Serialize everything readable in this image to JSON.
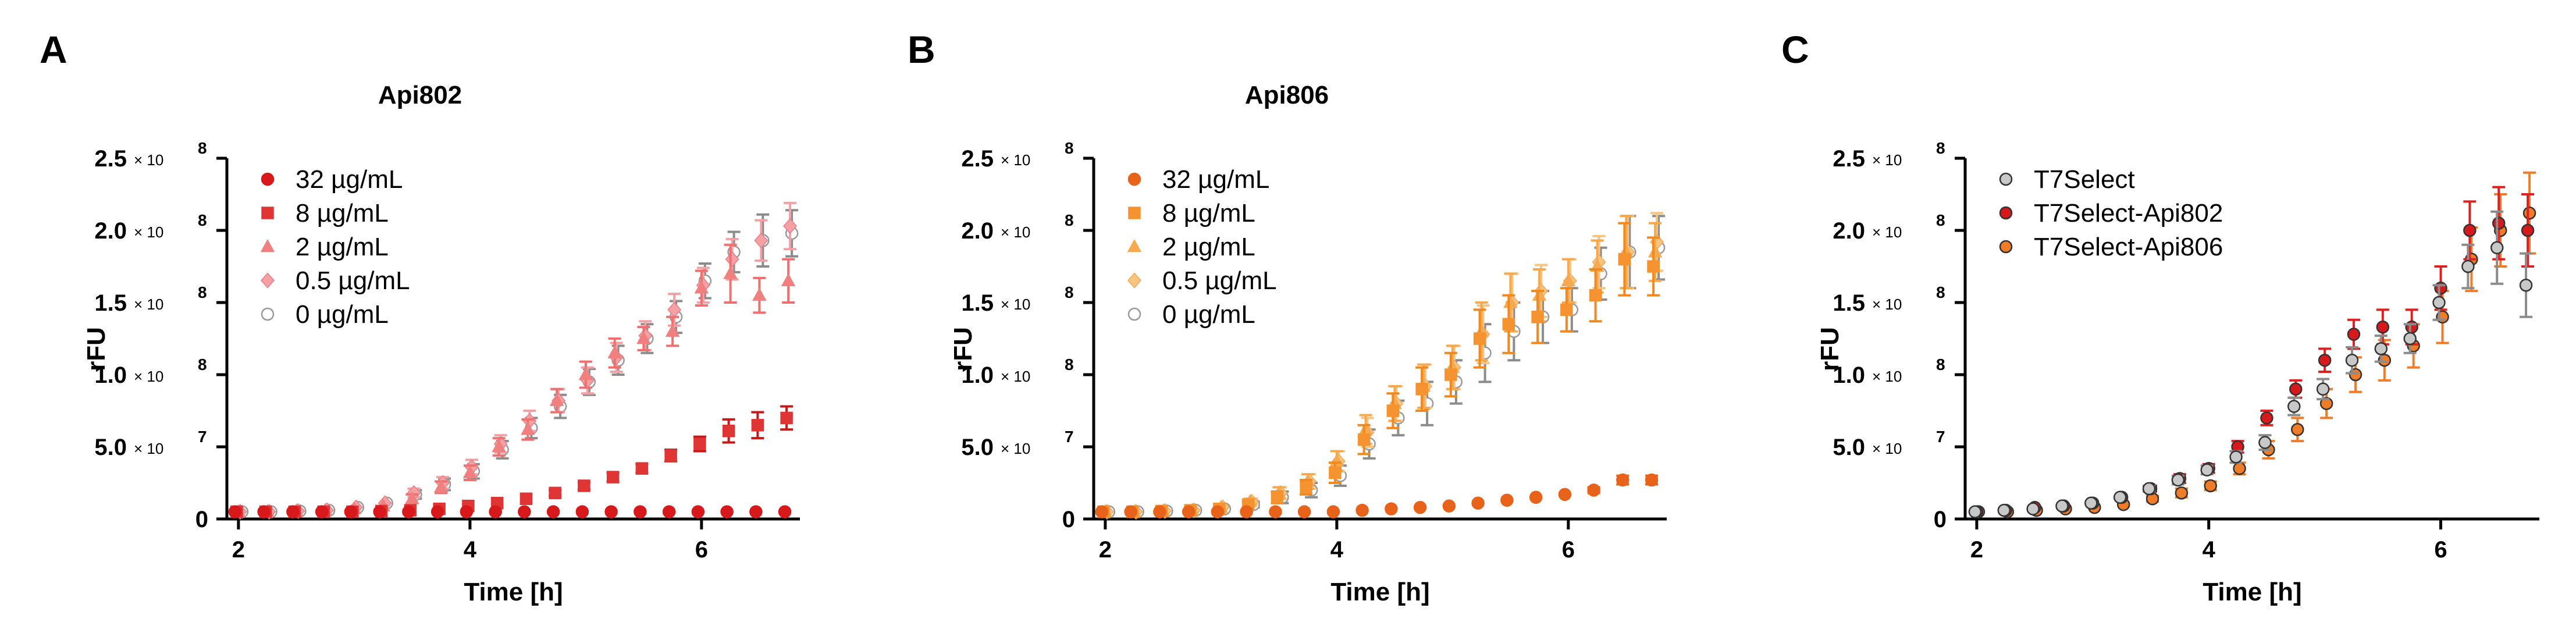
{
  "figure": {
    "panels": [
      {
        "id": "A",
        "letter": "A",
        "title": "Api802"
      },
      {
        "id": "B",
        "letter": "B",
        "title": "Api806"
      },
      {
        "id": "C",
        "letter": "C",
        "title": ""
      }
    ]
  },
  "chart_data": [
    {
      "panel": "A",
      "type": "scatter",
      "title": "Api802",
      "xlabel": "Time [h]",
      "ylabel": "rFU",
      "xlim": [
        1.9,
        6.85
      ],
      "ylim": [
        0,
        250000000
      ],
      "xticks": [
        {
          "value": 2,
          "label": "2"
        },
        {
          "value": 4,
          "label": "4"
        },
        {
          "value": 6,
          "label": "6"
        }
      ],
      "yticks": [
        {
          "value": 0,
          "mant": "0",
          "times": "",
          "exp": ""
        },
        {
          "value": 50000000,
          "mant": "5.0",
          "times": "× 10",
          "exp": "7"
        },
        {
          "value": 100000000,
          "mant": "1.0",
          "times": "× 10",
          "exp": "8"
        },
        {
          "value": 150000000,
          "mant": "1.5",
          "times": "× 10",
          "exp": "8"
        },
        {
          "value": 200000000,
          "mant": "2.0",
          "times": "× 10",
          "exp": "8"
        },
        {
          "value": 250000000,
          "mant": "2.5",
          "times": "× 10",
          "exp": "8"
        }
      ],
      "legend_position": "top-left",
      "x": [
        2.0,
        2.25,
        2.5,
        2.75,
        3.0,
        3.25,
        3.5,
        3.75,
        4.0,
        4.25,
        4.5,
        4.75,
        5.0,
        5.25,
        5.5,
        5.75,
        6.0,
        6.25,
        6.5,
        6.75
      ],
      "series": [
        {
          "name": "32 µg/mL",
          "marker": "circle",
          "fill": "#d7191c",
          "stroke": "#d7191c",
          "err_color": "#d7191c",
          "values": [
            5,
            5,
            5,
            5,
            5,
            5,
            5,
            5,
            5,
            5,
            5,
            5,
            5,
            5,
            5,
            5,
            5,
            5,
            5,
            5
          ],
          "errors": [
            0.2,
            0.2,
            0.2,
            0.2,
            0.2,
            0.2,
            0.2,
            0.2,
            0.2,
            0.2,
            0.2,
            0.2,
            0.2,
            0.2,
            0.2,
            0.2,
            0.2,
            0.2,
            0.2,
            0.2
          ]
        },
        {
          "name": "8 µg/mL",
          "marker": "square",
          "fill": "#e03535",
          "stroke": "#e03535",
          "err_color": "#c81818",
          "values": [
            5,
            5,
            5,
            5,
            5,
            5.5,
            6,
            7,
            9,
            11,
            14,
            18,
            23,
            29,
            35,
            44,
            52,
            61,
            65,
            70
          ],
          "errors": [
            0.3,
            0.3,
            0.3,
            0.3,
            0.3,
            0.4,
            0.5,
            0.6,
            0.8,
            1,
            1.5,
            2,
            2.5,
            3,
            3,
            4,
            5,
            8,
            9,
            8
          ]
        },
        {
          "name": "2 µg/mL",
          "marker": "triangle",
          "fill": "#f08080",
          "stroke": "#f08080",
          "err_color": "#f07070",
          "values": [
            5,
            5,
            5.5,
            6,
            7,
            9,
            14,
            22,
            32,
            50,
            62,
            82,
            100,
            115,
            125,
            130,
            160,
            170,
            155,
            165
          ],
          "errors": [
            0.3,
            0.3,
            0.4,
            0.5,
            1,
            1.5,
            3,
            4,
            5,
            6,
            7,
            8,
            9,
            10,
            8,
            10,
            12,
            20,
            12,
            15
          ]
        },
        {
          "name": "0.5 µg/mL",
          "marker": "diamond",
          "fill": "#f4a0a4",
          "stroke": "#e87f86",
          "err_color": "#f4a0a4",
          "values": [
            5,
            5,
            5.5,
            6,
            8,
            11,
            18,
            25,
            36,
            52,
            68,
            82,
            96,
            112,
            127,
            145,
            162,
            180,
            193,
            203
          ],
          "errors": [
            0.3,
            0.3,
            0.4,
            0.5,
            1,
            1.5,
            3,
            4,
            5,
            6,
            7,
            8,
            9,
            10,
            10,
            11,
            12,
            14,
            14,
            16
          ]
        },
        {
          "name": "0 µg/mL",
          "marker": "circle-open",
          "fill": "#ffffff",
          "stroke": "#9a9a9a",
          "err_color": "#8c8c8c",
          "values": [
            5,
            5,
            5.5,
            6,
            8,
            11,
            17,
            24,
            33,
            48,
            63,
            78,
            95,
            110,
            125,
            140,
            165,
            185,
            193,
            198
          ],
          "errors": [
            0.3,
            0.3,
            0.4,
            0.5,
            1,
            1.5,
            3,
            4,
            5,
            6,
            7,
            8,
            9,
            10,
            10,
            11,
            12,
            14,
            18,
            16
          ]
        }
      ]
    },
    {
      "panel": "B",
      "type": "scatter",
      "title": "Api806",
      "xlabel": "Time [h]",
      "ylabel": "rFU",
      "xlim": [
        1.9,
        6.85
      ],
      "ylim": [
        0,
        250000000
      ],
      "xticks": [
        {
          "value": 2,
          "label": "2"
        },
        {
          "value": 4,
          "label": "4"
        },
        {
          "value": 6,
          "label": "6"
        }
      ],
      "yticks": [
        {
          "value": 0,
          "mant": "0",
          "times": "",
          "exp": ""
        },
        {
          "value": 50000000,
          "mant": "5.0",
          "times": "× 10",
          "exp": "7"
        },
        {
          "value": 100000000,
          "mant": "1.0",
          "times": "× 10",
          "exp": "8"
        },
        {
          "value": 150000000,
          "mant": "1.5",
          "times": "× 10",
          "exp": "8"
        },
        {
          "value": 200000000,
          "mant": "2.0",
          "times": "× 10",
          "exp": "8"
        },
        {
          "value": 250000000,
          "mant": "2.5",
          "times": "× 10",
          "exp": "8"
        }
      ],
      "legend_position": "top-left",
      "x": [
        2.0,
        2.25,
        2.5,
        2.75,
        3.0,
        3.25,
        3.5,
        3.75,
        4.0,
        4.25,
        4.5,
        4.75,
        5.0,
        5.25,
        5.5,
        5.75,
        6.0,
        6.25,
        6.5,
        6.75
      ],
      "series": [
        {
          "name": "32 µg/mL",
          "marker": "circle",
          "fill": "#e8621a",
          "stroke": "#e8621a",
          "err_color": "#e8621a",
          "values": [
            5,
            5,
            5,
            5,
            5,
            5,
            5,
            5,
            5,
            6,
            7,
            8,
            9,
            11,
            13,
            15,
            17,
            20,
            27,
            27
          ],
          "errors": [
            0.2,
            0.2,
            0.2,
            0.2,
            0.2,
            0.2,
            0.2,
            0.2,
            0.3,
            0.4,
            0.5,
            0.6,
            0.7,
            0.8,
            1,
            1,
            1.5,
            2,
            3,
            3
          ]
        },
        {
          "name": "8 µg/mL",
          "marker": "square",
          "fill": "#f59330",
          "stroke": "#f59330",
          "err_color": "#f08a20",
          "values": [
            5,
            5,
            5.5,
            6,
            7,
            10,
            15,
            22,
            32,
            55,
            75,
            90,
            100,
            125,
            135,
            140,
            145,
            155,
            180,
            175
          ],
          "errors": [
            0.3,
            0.3,
            0.4,
            0.5,
            1,
            2,
            4,
            5,
            7,
            10,
            12,
            15,
            15,
            20,
            20,
            18,
            15,
            18,
            25,
            20
          ]
        },
        {
          "name": "2 µg/mL",
          "marker": "triangle",
          "fill": "#f6a94e",
          "stroke": "#f6a94e",
          "err_color": "#f6a94e",
          "values": [
            5,
            5,
            5.5,
            6,
            8,
            12,
            18,
            26,
            40,
            62,
            80,
            92,
            105,
            130,
            150,
            155,
            165,
            175,
            185,
            185
          ],
          "errors": [
            0.3,
            0.3,
            0.4,
            0.5,
            1,
            2,
            4,
            5,
            7,
            10,
            12,
            15,
            15,
            20,
            20,
            18,
            15,
            18,
            25,
            20
          ]
        },
        {
          "name": "0.5 µg/mL",
          "marker": "diamond",
          "fill": "#f9c380",
          "stroke": "#f4a85a",
          "err_color": "#f9c380",
          "values": [
            5,
            5,
            5.5,
            6,
            8,
            12,
            18,
            26,
            40,
            60,
            80,
            92,
            105,
            128,
            150,
            158,
            165,
            178,
            185,
            192
          ],
          "errors": [
            0.3,
            0.3,
            0.4,
            0.5,
            1,
            2,
            4,
            5,
            7,
            10,
            12,
            15,
            15,
            20,
            20,
            18,
            15,
            18,
            25,
            20
          ]
        },
        {
          "name": "0 µg/mL",
          "marker": "circle-open",
          "fill": "#ffffff",
          "stroke": "#9a9a9a",
          "err_color": "#8c8c8c",
          "values": [
            5,
            5,
            5.5,
            6,
            7,
            10,
            15,
            20,
            30,
            52,
            70,
            80,
            95,
            115,
            130,
            140,
            145,
            170,
            185,
            188
          ],
          "errors": [
            0.3,
            0.3,
            0.4,
            0.5,
            1,
            2,
            4,
            5,
            7,
            10,
            12,
            15,
            15,
            20,
            20,
            18,
            15,
            18,
            25,
            22
          ]
        }
      ]
    },
    {
      "panel": "C",
      "type": "scatter",
      "title": "",
      "xlabel": "Time [h]",
      "ylabel": "rFU",
      "xlim": [
        1.9,
        6.85
      ],
      "ylim": [
        0,
        250000000
      ],
      "xticks": [
        {
          "value": 2,
          "label": "2"
        },
        {
          "value": 4,
          "label": "4"
        },
        {
          "value": 6,
          "label": "6"
        }
      ],
      "yticks": [
        {
          "value": 0,
          "mant": "0",
          "times": "",
          "exp": ""
        },
        {
          "value": 50000000,
          "mant": "5.0",
          "times": "× 10",
          "exp": "7"
        },
        {
          "value": 100000000,
          "mant": "1.0",
          "times": "× 10",
          "exp": "8"
        },
        {
          "value": 150000000,
          "mant": "1.5",
          "times": "× 10",
          "exp": "8"
        },
        {
          "value": 200000000,
          "mant": "2.0",
          "times": "× 10",
          "exp": "8"
        },
        {
          "value": 250000000,
          "mant": "2.5",
          "times": "× 10",
          "exp": "8"
        }
      ],
      "legend_position": "top-left",
      "x": [
        2.0,
        2.25,
        2.5,
        2.75,
        3.0,
        3.25,
        3.5,
        3.75,
        4.0,
        4.25,
        4.5,
        4.75,
        5.0,
        5.25,
        5.5,
        5.75,
        6.0,
        6.25,
        6.5,
        6.75
      ],
      "series": [
        {
          "name": "T7Select",
          "marker": "circle",
          "fill": "#c8c8c8",
          "stroke": "#333333",
          "err_color": "#8c8c8c",
          "values": [
            5,
            6,
            7,
            9,
            11,
            15,
            21,
            27,
            34,
            43,
            53,
            78,
            90,
            110,
            118,
            125,
            150,
            175,
            188,
            162
          ],
          "errors": [
            0.4,
            0.5,
            0.6,
            0.8,
            1,
            1.5,
            2,
            3,
            3,
            4,
            5,
            6,
            7,
            9,
            9,
            10,
            12,
            15,
            25,
            22
          ]
        },
        {
          "name": "T7Select-Api802",
          "marker": "circle",
          "fill": "#d7191c",
          "stroke": "#333333",
          "err_color": "#e02020",
          "values": [
            5,
            6,
            8,
            9,
            11,
            15,
            21,
            28,
            35,
            50,
            70,
            90,
            110,
            128,
            133,
            133,
            160,
            200,
            205,
            200
          ],
          "errors": [
            0.4,
            0.5,
            0.6,
            0.8,
            1,
            1.5,
            2,
            3,
            3,
            4,
            5,
            6,
            8,
            10,
            12,
            12,
            15,
            20,
            25,
            25
          ]
        },
        {
          "name": "T7Select-Api806",
          "marker": "circle",
          "fill": "#f07c28",
          "stroke": "#333333",
          "err_color": "#f07c28",
          "values": [
            5,
            5,
            6,
            7,
            8,
            10,
            14,
            18,
            23,
            35,
            48,
            62,
            80,
            100,
            110,
            120,
            140,
            180,
            200,
            212
          ],
          "errors": [
            0.4,
            0.5,
            0.6,
            0.8,
            1,
            1.5,
            2,
            3,
            3,
            4,
            6,
            8,
            10,
            12,
            14,
            15,
            18,
            22,
            25,
            28
          ]
        }
      ]
    }
  ]
}
